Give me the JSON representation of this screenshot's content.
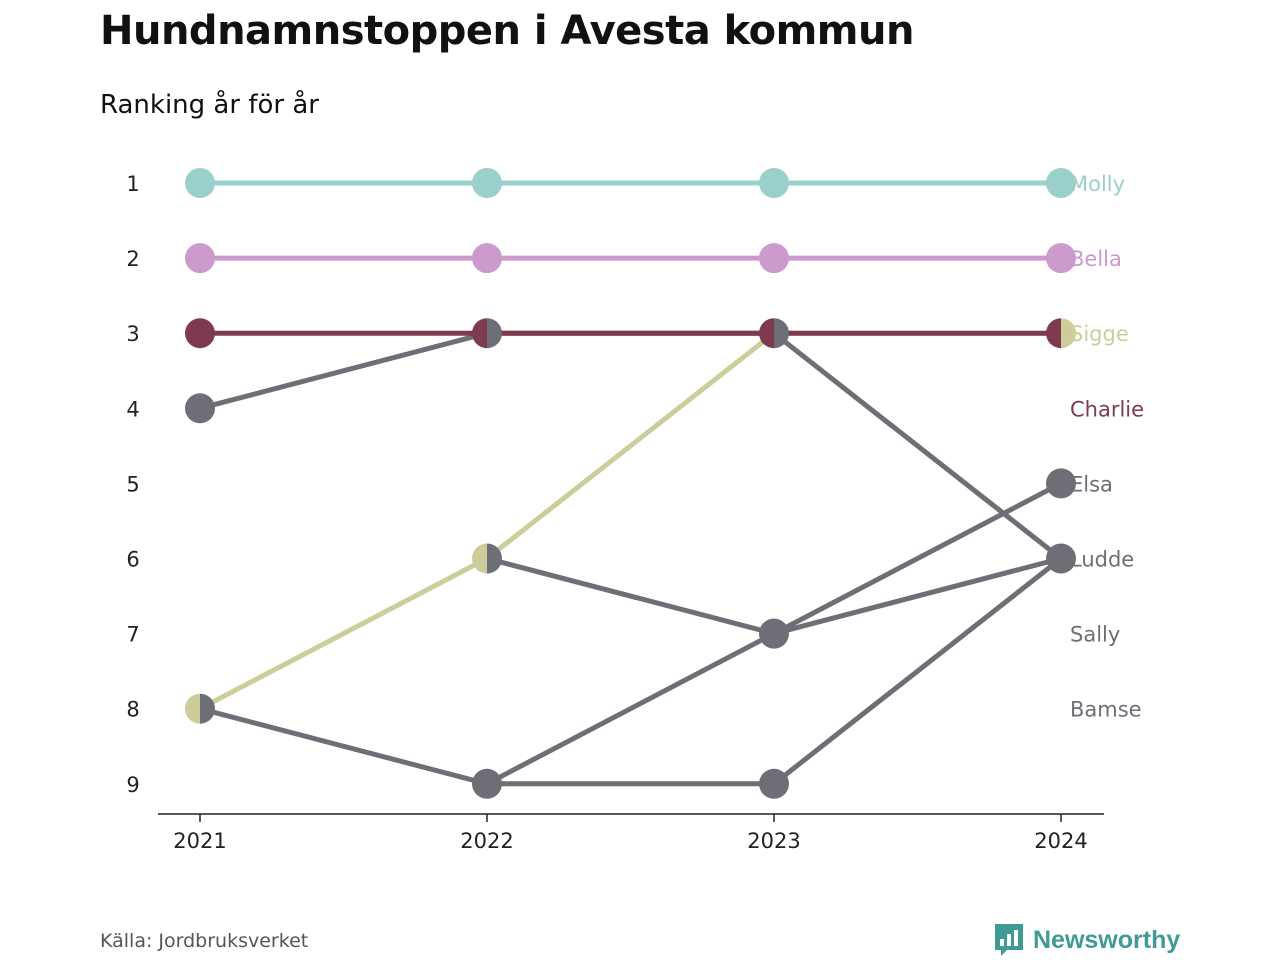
{
  "header": {
    "title": "Hundnamnstoppen i Avesta kommun",
    "subtitle": "Ranking år för år"
  },
  "footer": {
    "source": "Källa: Jordbruksverket",
    "brand": "Newsworthy"
  },
  "colors": {
    "highlight": "#9bcfcb",
    "gray": "#6e6e76"
  },
  "chart_data": {
    "type": "line",
    "x": [
      "2021",
      "2022",
      "2023",
      "2024"
    ],
    "y_ticks": [
      "1",
      "2",
      "3",
      "4",
      "5",
      "6",
      "7",
      "8",
      "9"
    ],
    "ylim": [
      1,
      9
    ],
    "y_inverted": true,
    "grid": false,
    "series": [
      {
        "name": "Molly",
        "color": "#9bcfcb",
        "values": [
          1,
          1,
          1,
          1
        ]
      },
      {
        "name": "Bella",
        "color": "#cc9acd",
        "values": [
          2,
          2,
          2,
          2
        ]
      },
      {
        "name": "Sigge",
        "color": "#cdcd9b",
        "values": [
          8,
          6,
          3,
          3
        ]
      },
      {
        "name": "Charlie",
        "color": "#7e3b4f",
        "values": [
          3,
          3,
          3,
          3
        ]
      },
      {
        "name": "Elsa",
        "color": "#6e6e76",
        "values": [
          null,
          9,
          7,
          5
        ]
      },
      {
        "name": "Ludde",
        "color": "#6e6e76",
        "values": [
          4,
          3,
          3,
          6
        ]
      },
      {
        "name": "Sally",
        "color": "#6e6e76",
        "values": [
          8,
          9,
          9,
          6
        ]
      },
      {
        "name": "Bamse",
        "color": "#6e6e76",
        "values": [
          null,
          6,
          7,
          6
        ]
      }
    ],
    "end_labels": [
      "Molly",
      "Bella",
      "Sigge",
      "Charlie",
      "Elsa",
      "Ludde",
      "Sally",
      "Bamse"
    ]
  }
}
